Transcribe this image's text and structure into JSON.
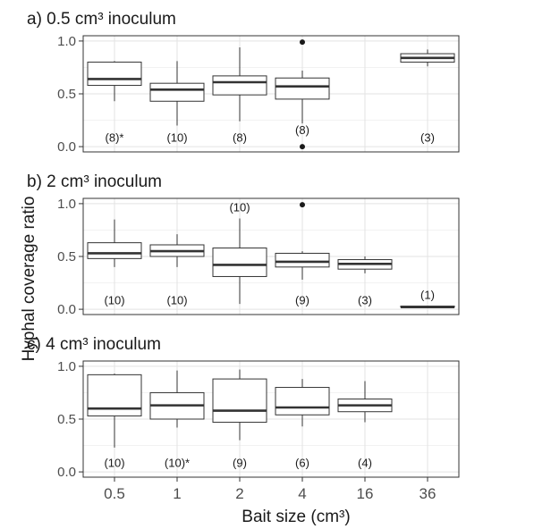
{
  "chart_data": {
    "type": "box",
    "xlabel": "Bait size (cm³)",
    "ylabel": "Hyphal coverage ratio",
    "categories": [
      "0.5",
      "1",
      "2",
      "4",
      "16",
      "36"
    ],
    "y_ticks": [
      "0.0",
      "0.5",
      "1.0"
    ],
    "ylim": [
      0,
      1
    ],
    "grid": true,
    "panels": [
      {
        "title": "a) 0.5 cm³ inoculum",
        "boxes": [
          {
            "category": "0.5",
            "min": 0.43,
            "q1": 0.58,
            "median": 0.64,
            "q3": 0.8,
            "max": 0.81,
            "outliers": [],
            "n_label": "(8)*"
          },
          {
            "category": "1",
            "min": 0.2,
            "q1": 0.43,
            "median": 0.54,
            "q3": 0.6,
            "max": 0.81,
            "outliers": [],
            "n_label": "(10)"
          },
          {
            "category": "2",
            "min": 0.24,
            "q1": 0.49,
            "median": 0.61,
            "q3": 0.67,
            "max": 0.94,
            "outliers": [],
            "n_label": "(8)"
          },
          {
            "category": "4",
            "min": 0.22,
            "q1": 0.45,
            "median": 0.57,
            "q3": 0.65,
            "max": 0.72,
            "outliers": [
              0.0,
              0.99
            ],
            "n_label": "(8)"
          },
          {
            "category": "36",
            "min": 0.76,
            "q1": 0.8,
            "median": 0.84,
            "q3": 0.88,
            "max": 0.92,
            "outliers": [],
            "n_label": "(3)"
          }
        ]
      },
      {
        "title": "b) 2 cm³ inoculum",
        "boxes": [
          {
            "category": "0.5",
            "min": 0.4,
            "q1": 0.48,
            "median": 0.53,
            "q3": 0.63,
            "max": 0.85,
            "outliers": [],
            "n_label": "(10)"
          },
          {
            "category": "1",
            "min": 0.4,
            "q1": 0.5,
            "median": 0.55,
            "q3": 0.61,
            "max": 0.71,
            "outliers": [],
            "n_label": "(10)"
          },
          {
            "category": "2",
            "min": 0.05,
            "q1": 0.31,
            "median": 0.42,
            "q3": 0.58,
            "max": 0.86,
            "outliers": [],
            "n_label": "(10)"
          },
          {
            "category": "4",
            "min": 0.28,
            "q1": 0.4,
            "median": 0.45,
            "q3": 0.53,
            "max": 0.55,
            "outliers": [
              0.99
            ],
            "n_label": "(9)"
          },
          {
            "category": "16",
            "min": 0.34,
            "q1": 0.38,
            "median": 0.43,
            "q3": 0.47,
            "max": 0.5,
            "outliers": [],
            "n_label": "(3)"
          },
          {
            "category": "36",
            "min": 0.02,
            "q1": 0.02,
            "median": 0.02,
            "q3": 0.03,
            "max": 0.03,
            "outliers": [],
            "n_label": "(1)"
          }
        ]
      },
      {
        "title": "c) 4 cm³ inoculum",
        "boxes": [
          {
            "category": "0.5",
            "min": 0.23,
            "q1": 0.53,
            "median": 0.6,
            "q3": 0.92,
            "max": 0.93,
            "outliers": [],
            "n_label": "(10)"
          },
          {
            "category": "1",
            "min": 0.42,
            "q1": 0.5,
            "median": 0.63,
            "q3": 0.75,
            "max": 0.96,
            "outliers": [],
            "n_label": "(10)*"
          },
          {
            "category": "2",
            "min": 0.3,
            "q1": 0.47,
            "median": 0.58,
            "q3": 0.88,
            "max": 0.97,
            "outliers": [],
            "n_label": "(9)"
          },
          {
            "category": "4",
            "min": 0.43,
            "q1": 0.54,
            "median": 0.61,
            "q3": 0.8,
            "max": 0.88,
            "outliers": [],
            "n_label": "(6)"
          },
          {
            "category": "16",
            "min": 0.47,
            "q1": 0.57,
            "median": 0.63,
            "q3": 0.69,
            "max": 0.86,
            "outliers": [],
            "n_label": "(4)"
          }
        ]
      }
    ]
  }
}
